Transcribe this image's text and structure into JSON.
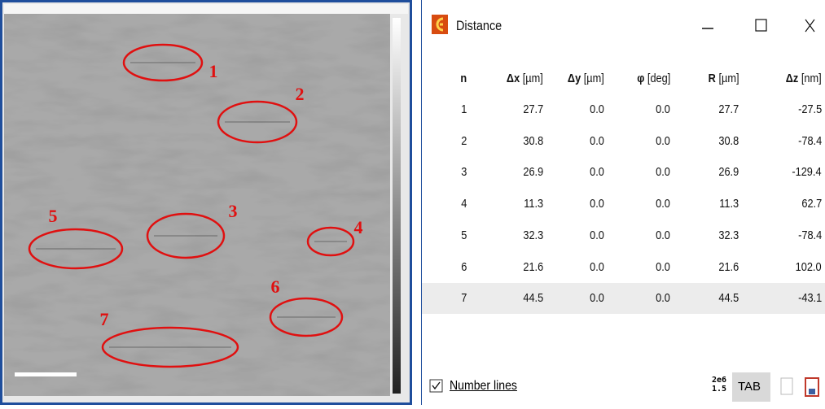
{
  "image_panel": {
    "labels": [
      "1",
      "2",
      "3",
      "4",
      "5",
      "6",
      "7"
    ]
  },
  "dialog": {
    "title": "Distance",
    "columns": [
      {
        "name": "n"
      },
      {
        "name": "Δx",
        "unit": "[µm]"
      },
      {
        "name": "Δy",
        "unit": "[µm]"
      },
      {
        "name": "φ",
        "unit": "[deg]"
      },
      {
        "name": "R",
        "unit": "[µm]"
      },
      {
        "name": "Δz",
        "unit": "[nm]"
      }
    ],
    "rows": [
      [
        "1",
        "27.7",
        "0.0",
        "0.0",
        "27.7",
        "-27.5"
      ],
      [
        "2",
        "30.8",
        "0.0",
        "0.0",
        "30.8",
        "-78.4"
      ],
      [
        "3",
        "26.9",
        "0.0",
        "0.0",
        "26.9",
        "-129.4"
      ],
      [
        "4",
        "11.3",
        "0.0",
        "0.0",
        "11.3",
        "62.7"
      ],
      [
        "5",
        "32.3",
        "0.0",
        "0.0",
        "32.3",
        "-78.4"
      ],
      [
        "6",
        "21.6",
        "0.0",
        "0.0",
        "21.6",
        "102.0"
      ],
      [
        "7",
        "44.5",
        "0.0",
        "0.0",
        "44.5",
        "-43.1"
      ]
    ],
    "footer": {
      "checkbox_label": "Number lines",
      "format_top": "2e6",
      "format_bottom": "1.5",
      "tab_button": "TAB"
    }
  }
}
